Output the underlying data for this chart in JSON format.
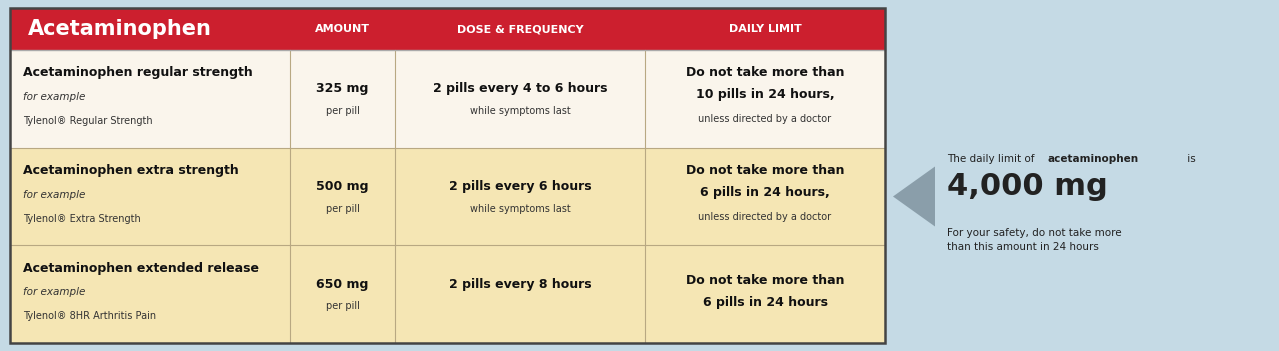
{
  "bg_color": "#c5dae5",
  "header_bg": "#cc1f2e",
  "header_text_color": "#ffffff",
  "header_title": "Acetaminophen",
  "col_headers": [
    "AMOUNT",
    "DOSE & FREQUENCY",
    "DAILY LIMIT"
  ],
  "row_bg_white": "#faf5ec",
  "row_bg_yellow": "#f5e6b4",
  "border_color": "#b8a882",
  "dark_border": "#444444",
  "rows": [
    {
      "bg": "#faf5ec",
      "name_bold": "Acetaminophen regular strength",
      "name_italic": "for example",
      "name_sub": "Tylenol® Regular Strength",
      "amount_bold": "325 mg",
      "amount_sub": "per pill",
      "dose_bold": "2 pills every 4 to 6 hours",
      "dose_sub": "while symptoms last",
      "limit_line1": "Do not take more than",
      "limit_line2": "10 pills in 24 hours,",
      "limit_sub": "unless directed by a doctor"
    },
    {
      "bg": "#f5e6b4",
      "name_bold": "Acetaminophen extra strength",
      "name_italic": "for example",
      "name_sub": "Tylenol® Extra Strength",
      "amount_bold": "500 mg",
      "amount_sub": "per pill",
      "dose_bold": "2 pills every 6 hours",
      "dose_sub": "while symptoms last",
      "limit_line1": "Do not take more than",
      "limit_line2": "6 pills in 24 hours,",
      "limit_sub": "unless directed by a doctor"
    },
    {
      "bg": "#f5e6b4",
      "name_bold": "Acetaminophen extended release",
      "name_italic": "for example",
      "name_sub": "Tylenol® 8HR Arthritis Pain",
      "amount_bold": "650 mg",
      "amount_sub": "per pill",
      "dose_bold": "2 pills every 8 hours",
      "dose_sub": "",
      "limit_line1": "Do not take more than",
      "limit_line2": "6 pills in 24 hours",
      "limit_sub": ""
    }
  ],
  "side_line1_plain": "The daily limit of ",
  "side_line1_bold": "acetaminophen",
  "side_line1_end": " is",
  "side_big": "4,000 mg",
  "side_sub": "For your safety, do not take more\nthan this amount in 24 hours",
  "arrow_color": "#8a9eaa"
}
